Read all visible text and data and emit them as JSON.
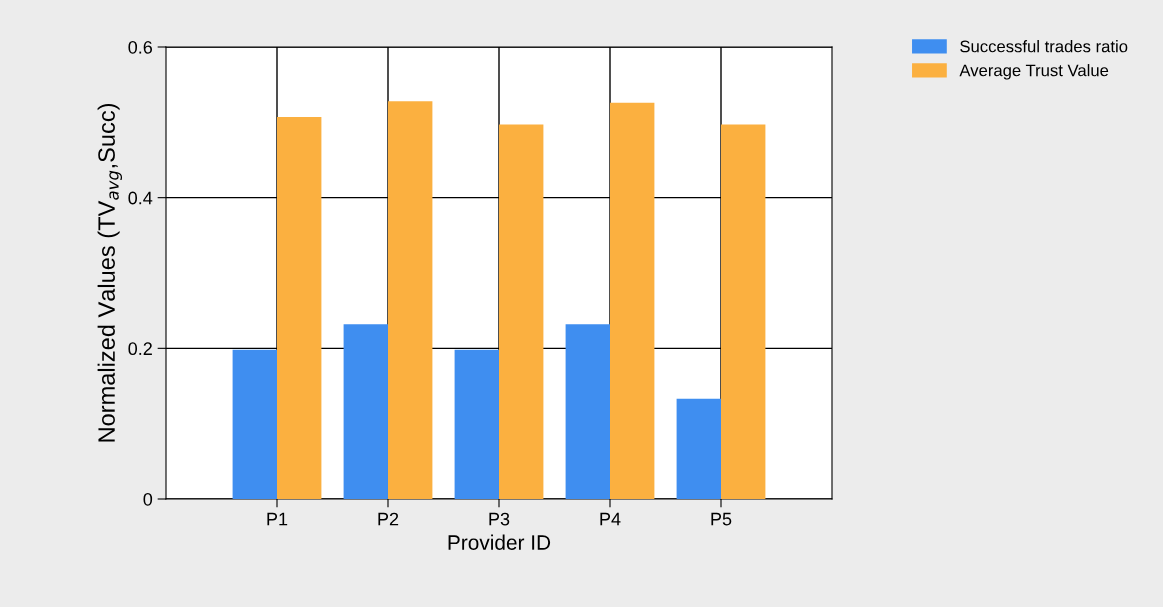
{
  "chart_data": {
    "type": "bar",
    "xlabel": "Provider ID",
    "ylabel": "Normalized Values (TV$_{avg}$,Succ)",
    "categories": [
      "P1",
      "P2",
      "P3",
      "P4",
      "P5"
    ],
    "series": [
      {
        "name": "Successful trades ratio",
        "color": "#3f8ef0",
        "values": [
          0.198,
          0.232,
          0.198,
          0.232,
          0.133
        ]
      },
      {
        "name": "Average Trust Value",
        "color": "#fbb040",
        "values": [
          0.507,
          0.528,
          0.497,
          0.526,
          0.497
        ]
      }
    ],
    "ylim": [
      0,
      0.6
    ],
    "yticks": [
      0,
      0.2,
      0.4,
      0.6
    ],
    "grid": true,
    "legend": "top right"
  }
}
